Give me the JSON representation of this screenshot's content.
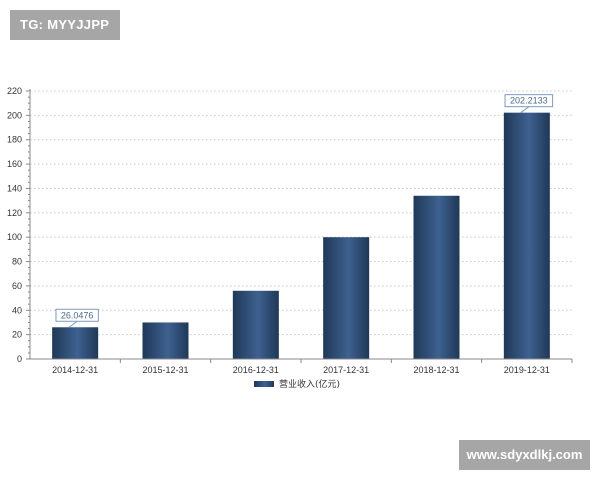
{
  "watermarks": {
    "top_left": "TG: MYYJJPP",
    "bottom_right": "www.sdyxdlkj.com"
  },
  "colors": {
    "bar_dark": "#1f3857",
    "bar_light": "#3e6190",
    "grid": "#c8c8c8",
    "axis": "#888888",
    "callout_border": "#7b9cbc"
  },
  "chart_data": {
    "type": "bar",
    "categories": [
      "2014-12-31",
      "2015-12-31",
      "2016-12-31",
      "2017-12-31",
      "2018-12-31",
      "2019-12-31"
    ],
    "series": [
      {
        "name": "营业收入(亿元)",
        "values": [
          26.0476,
          30,
          56,
          100,
          134,
          202.2133
        ]
      }
    ],
    "annotations": [
      {
        "index": 0,
        "text": "26.0476"
      },
      {
        "index": 5,
        "text": "202.2133"
      }
    ],
    "ylim": [
      0,
      220
    ],
    "yticks": [
      0,
      20,
      40,
      60,
      80,
      100,
      120,
      140,
      160,
      180,
      200,
      220
    ],
    "grid": "horizontal dotted",
    "legend": "bottom-center"
  }
}
